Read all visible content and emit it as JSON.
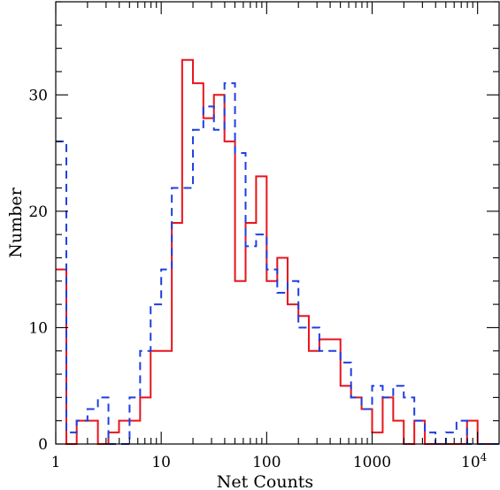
{
  "chart_data": {
    "type": "histogram",
    "title": "",
    "xlabel": "Net Counts",
    "ylabel": "Number",
    "xscale": "log",
    "xlim": [
      1,
      16000
    ],
    "ylim": [
      0,
      38
    ],
    "grid": false,
    "legend": "none",
    "x_tick_labels": [
      {
        "value": 1,
        "label": "1"
      },
      {
        "value": 10,
        "label": "10"
      },
      {
        "value": 100,
        "label": "100"
      },
      {
        "value": 1000,
        "label": "1000"
      },
      {
        "value": 10000,
        "label": "10",
        "sup": "4"
      }
    ],
    "y_tick_labels": [
      {
        "value": 0,
        "label": "0"
      },
      {
        "value": 10,
        "label": "10"
      },
      {
        "value": 20,
        "label": "20"
      },
      {
        "value": 30,
        "label": "30"
      }
    ],
    "bin_edges": [
      1,
      1.26,
      1.58,
      2.0,
      2.51,
      3.16,
      3.98,
      5.01,
      6.31,
      7.94,
      10.0,
      12.6,
      15.8,
      20.0,
      25.1,
      31.6,
      39.8,
      50.1,
      63.1,
      79.4,
      100,
      126,
      158,
      200,
      251,
      316,
      398,
      501,
      631,
      794,
      1000,
      1259,
      1585,
      1995,
      2512,
      3162,
      3981,
      5012,
      6310,
      7943,
      10000,
      12589,
      15849
    ],
    "series": [
      {
        "color": "#e8141c",
        "dash": "solid",
        "values": [
          15,
          0,
          2,
          2,
          0,
          1,
          2,
          2,
          4,
          8,
          8,
          19,
          33,
          31,
          28,
          30,
          26,
          14,
          19,
          23,
          14,
          16,
          12,
          11,
          8,
          9,
          9,
          5,
          4,
          3,
          1,
          4,
          2,
          0,
          2,
          0,
          0,
          0,
          0,
          2,
          0,
          0
        ]
      },
      {
        "color": "#1f3fe0",
        "dash": "dashed",
        "values": [
          26,
          1,
          2,
          3,
          4,
          0,
          0,
          4,
          8,
          12,
          15,
          22,
          22,
          27,
          29,
          27,
          31,
          25,
          17,
          18,
          15,
          13,
          14,
          10,
          10,
          8,
          8,
          7,
          4,
          3,
          5,
          4,
          5,
          4,
          2,
          1,
          0,
          1,
          2,
          0,
          0,
          0
        ]
      }
    ]
  }
}
